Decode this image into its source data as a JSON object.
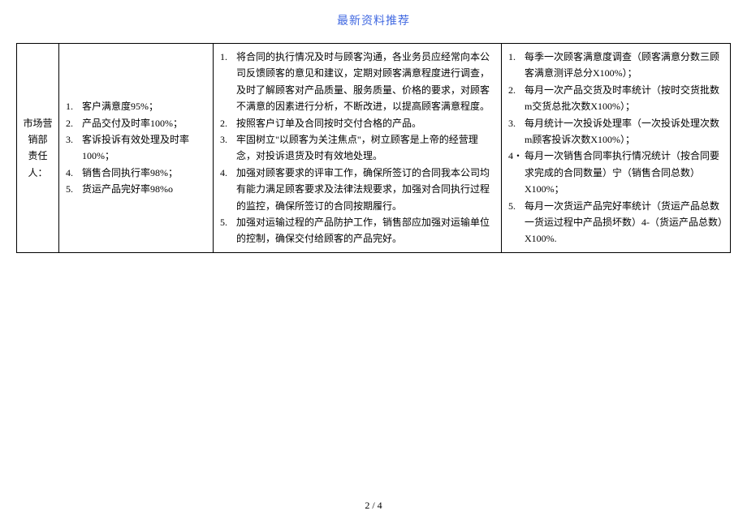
{
  "header": {
    "title": "最新资料推荐"
  },
  "table": {
    "row1": {
      "col1": {
        "line1": "市场营",
        "line2": "销部",
        "line3": "责任人："
      },
      "col2": {
        "item1": "客户满意度95%；",
        "item2": "产品交付及时率100%；",
        "item3": "客诉投诉有效处理及时率100%；",
        "item4": "销售合同执行率98%；",
        "item5": "货运产品完好率98%o"
      },
      "col3": {
        "item1": "将合同的执行情况及时与顾客沟通，各业务员应经常向本公司反馈顾客的意见和建议，定期对顾客满意程度进行调查，及时了解顾客对产品质量、服务质量、价格的要求，对顾客不满意的因素进行分析，不断改进，以提高顾客满意程度。",
        "item2": "按照客户订单及合同按时交付合格的产品。",
        "item3": "牢固树立\"以顾客为关注焦点\"，树立顾客是上帝的经营理念，对投诉退货及时有效地处理。",
        "item4": "加强对顾客要求的评审工作，确保所签订的合同我本公司均有能力满足顾客要求及法律法规要求，加强对合同执行过程的监控，确保所签订的合同按期履行。",
        "item5": "加强对运输过程的产品防护工作，销售部应加强对运输单位的控制，确保交付给顾客的产品完好。"
      },
      "col4": {
        "item1": "每季一次顾客满意度调查（顾客满意分数三顾客满意测评总分X100%）；",
        "item2": "每月一次产品交货及时率统计（按时交货批数m交货总批次数X100%）；",
        "item3": "每月统计一次投诉处理率（一次投诉处理次数m顾客投诉次数X100%）；",
        "item4": "每月一次销售合同率执行情况统计（按合同要求完成的合同数量）宁（销售合同总数）X100%；",
        "item5": "每月一次货运产品完好率统计（货运产品总数一货运过程中产品损坏数）4-（货运产品总数）X100%."
      }
    }
  },
  "footer": {
    "pageNum": "2 / 4"
  },
  "styles": {
    "titleColor": "#4169e1",
    "borderColor": "#000000",
    "textColor": "#000000",
    "bgColor": "#ffffff",
    "fontSize": 12,
    "titleFontSize": 14
  }
}
